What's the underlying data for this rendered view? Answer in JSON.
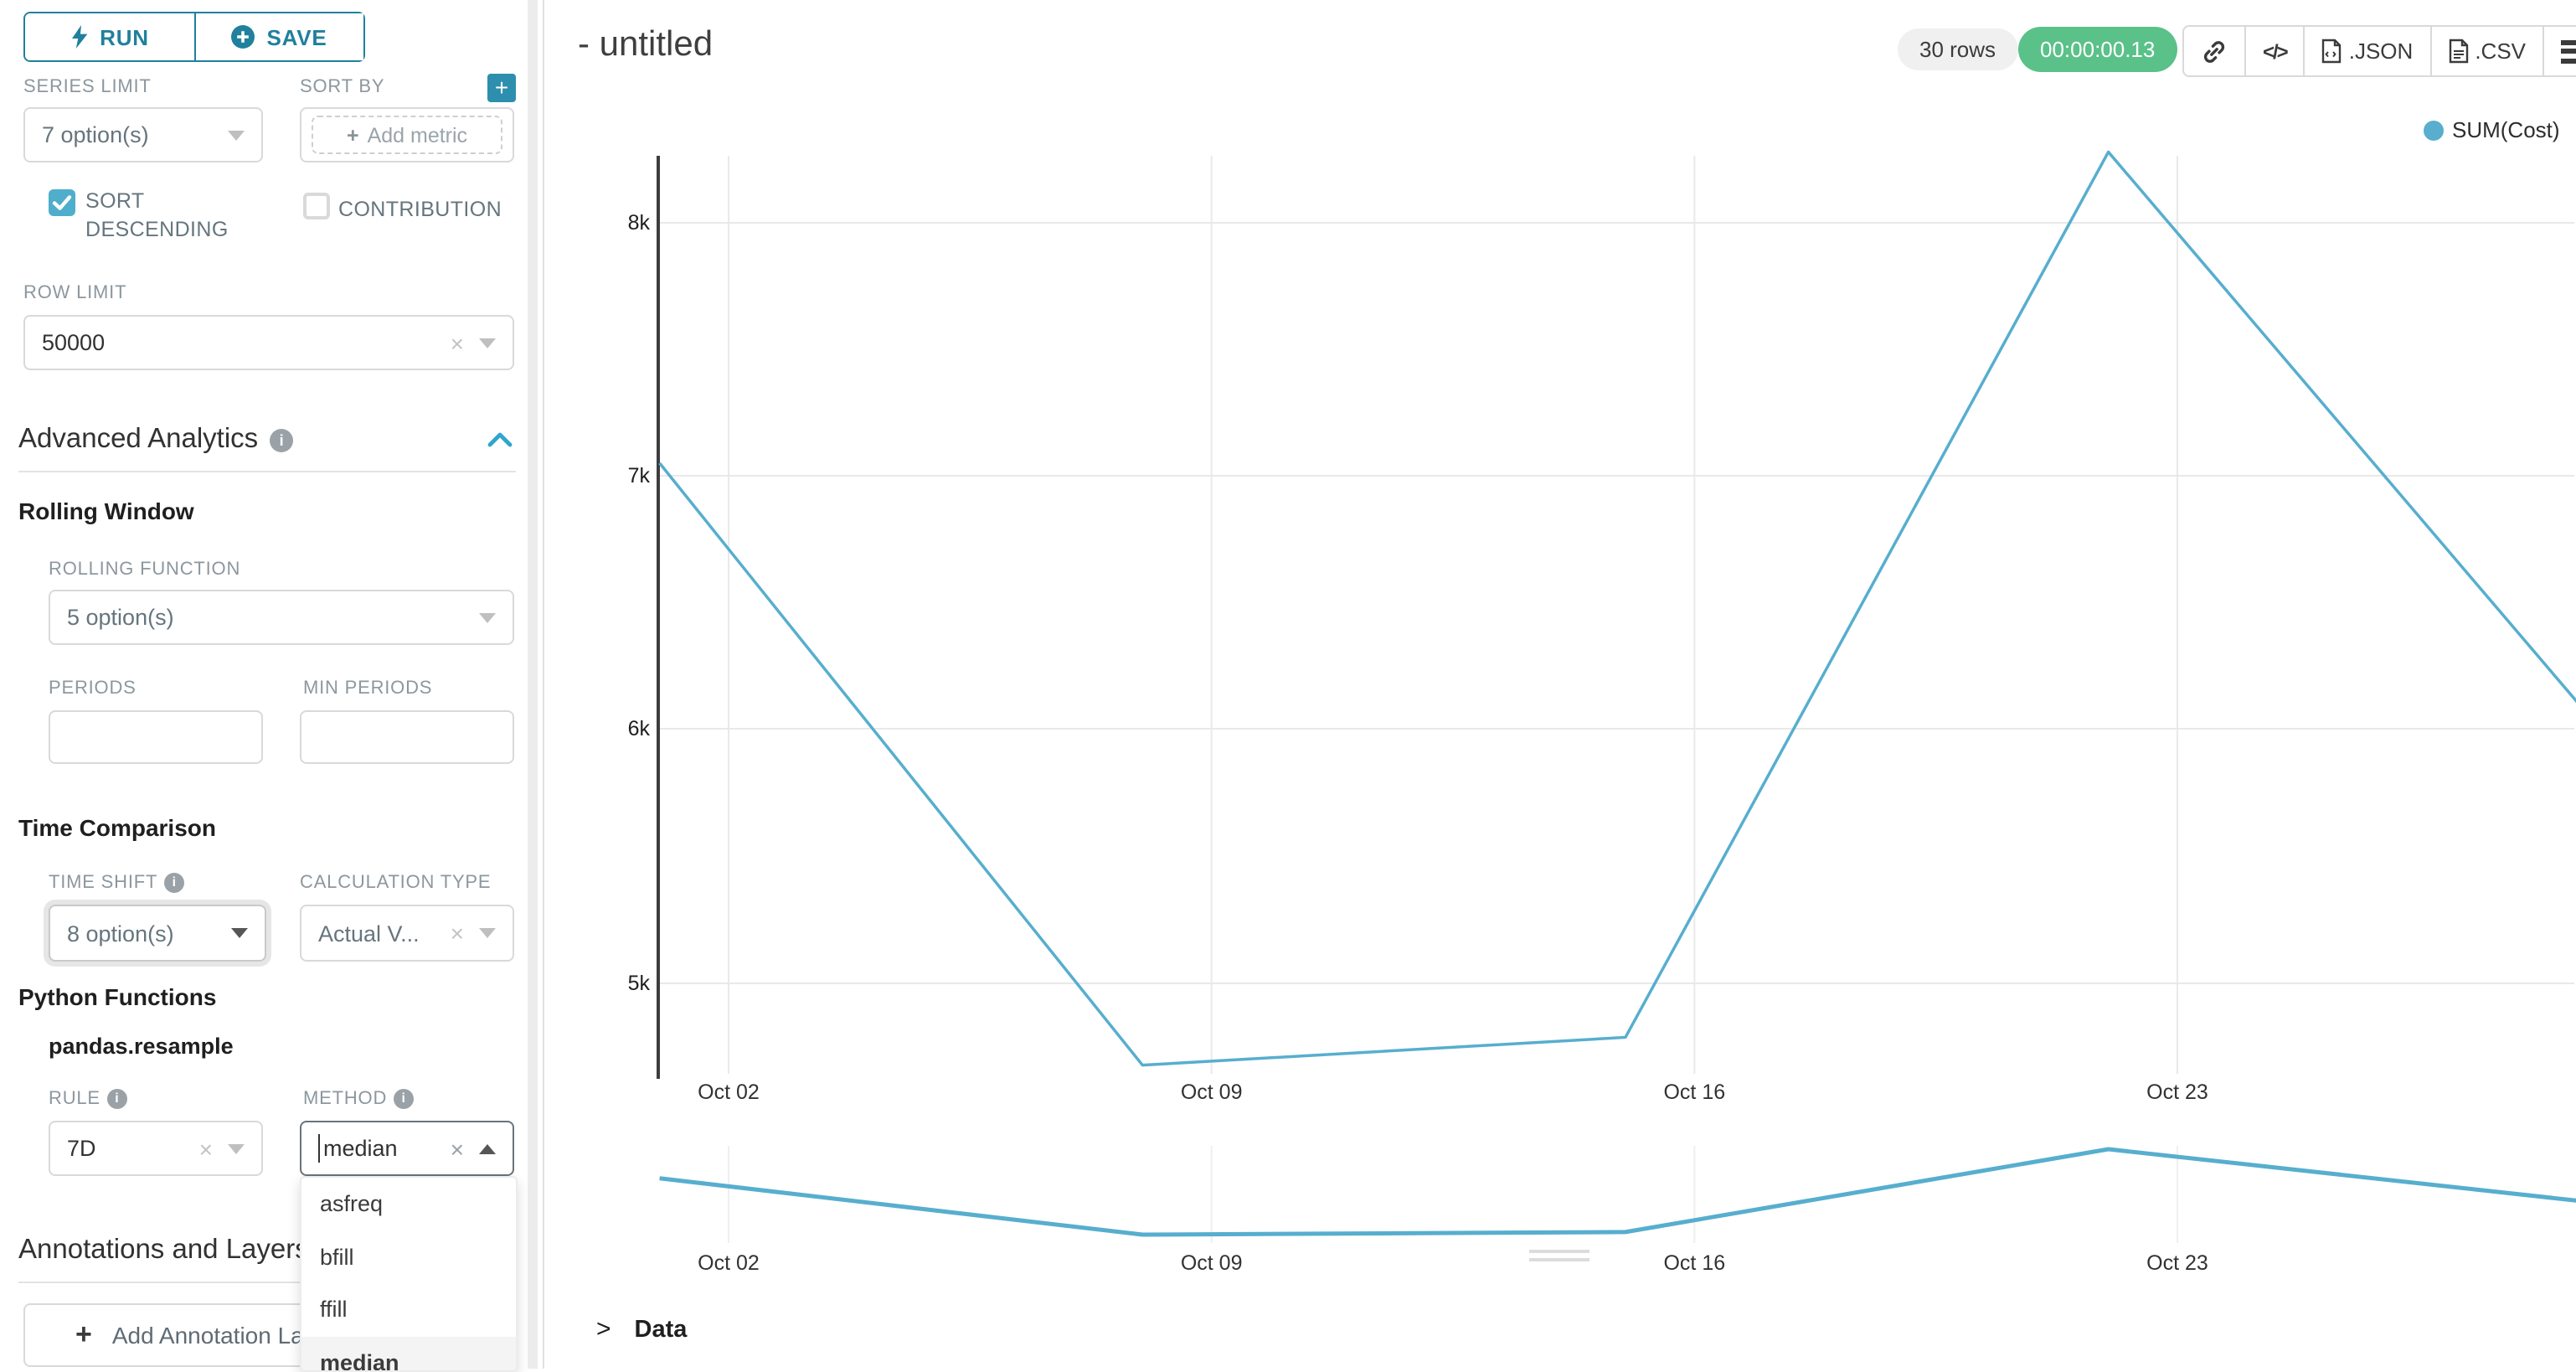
{
  "toolbar": {
    "run_label": "RUN",
    "save_label": "SAVE"
  },
  "sidebar": {
    "series_limit": {
      "label": "SERIES LIMIT",
      "value": "7 option(s)"
    },
    "sort_by": {
      "label": "SORT BY",
      "placeholder": "Add metric"
    },
    "sort_descending": {
      "label": "SORT DESCENDING",
      "checked": true
    },
    "contribution": {
      "label": "CONTRIBUTION",
      "checked": false
    },
    "row_limit": {
      "label": "ROW LIMIT",
      "value": "50000"
    },
    "advanced_analytics": {
      "title": "Advanced Analytics"
    },
    "rolling_window": {
      "title": "Rolling Window",
      "rolling_function": {
        "label": "ROLLING FUNCTION",
        "value": "5 option(s)"
      },
      "periods": {
        "label": "PERIODS",
        "value": ""
      },
      "min_periods": {
        "label": "MIN PERIODS",
        "value": ""
      }
    },
    "time_comparison": {
      "title": "Time Comparison",
      "time_shift": {
        "label": "TIME SHIFT",
        "value": "8 option(s)"
      },
      "calculation_type": {
        "label": "CALCULATION TYPE",
        "value": "Actual V..."
      }
    },
    "python_functions": {
      "title": "Python Functions",
      "subtitle": "pandas.resample",
      "rule": {
        "label": "RULE",
        "value": "7D"
      },
      "method": {
        "label": "METHOD",
        "value": "median",
        "options": [
          "asfreq",
          "bfill",
          "ffill",
          "median"
        ],
        "selected_option": "median"
      }
    },
    "annotations": {
      "title": "Annotations and Layers",
      "add_button": "Add Annotation Layer"
    }
  },
  "header": {
    "title": "- untitled",
    "rows_badge": "30 rows",
    "timer_badge": "00:00:00.13",
    "json_label": ".JSON",
    "csv_label": ".CSV"
  },
  "colors": {
    "primary_teal": "#20809D",
    "accent_blue": "#4FAECB",
    "line_color": "#57AECE",
    "success_green": "#5AC189"
  },
  "chart_data": {
    "type": "line",
    "title": "- untitled",
    "legend_position": "top-right",
    "grid": true,
    "series": [
      {
        "name": "SUM(Cost)",
        "x": [
          "Oct 01",
          "Oct 08",
          "Oct 15",
          "Oct 22",
          "Oct 29"
        ],
        "x_days": [
          1,
          8,
          15,
          22,
          29
        ],
        "values": [
          7050,
          4670,
          4780,
          8280,
          6040
        ]
      }
    ],
    "x_tick_labels": [
      "Oct 02",
      "Oct 09",
      "Oct 16",
      "Oct 23"
    ],
    "x_tick_days": [
      2,
      9,
      16,
      23
    ],
    "y_ticks": [
      5000,
      6000,
      7000,
      8000
    ],
    "y_tick_labels": [
      "5k",
      "6k",
      "7k",
      "8k"
    ],
    "ylim": [
      4640,
      8280
    ],
    "has_mini_preview": true
  }
}
